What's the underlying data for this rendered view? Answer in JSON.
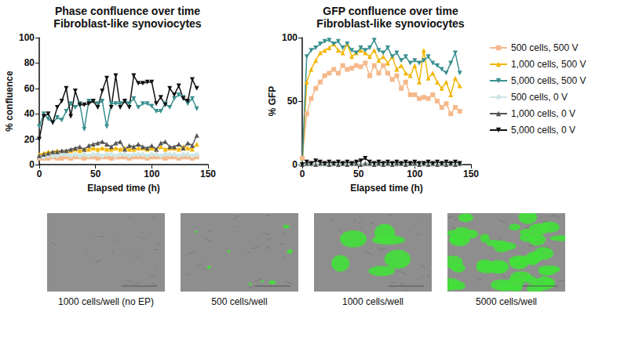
{
  "chart_data": [
    {
      "type": "line",
      "title": "Phase confluence over time",
      "subtitle": "Fibroblast-like synoviocytes",
      "x_label": "Elapsed time (h)",
      "y_label": "% confluence",
      "xlim": [
        0,
        150
      ],
      "xticks": [
        0,
        50,
        100,
        150
      ],
      "ylim": [
        0,
        100
      ],
      "yticks": [
        0,
        20,
        40,
        60,
        80,
        100
      ],
      "grid": false,
      "x": [
        0,
        4,
        8,
        12,
        16,
        20,
        24,
        28,
        32,
        36,
        40,
        44,
        48,
        52,
        56,
        60,
        64,
        68,
        72,
        76,
        80,
        84,
        88,
        92,
        96,
        100,
        104,
        108,
        112,
        116,
        120,
        124,
        128,
        132,
        136,
        140
      ],
      "series": [
        {
          "name": "500 cells, 500 V",
          "color": "#f5b98c",
          "marker": "square",
          "values": [
            5,
            5,
            5,
            6,
            5,
            5,
            6,
            5,
            6,
            6,
            5,
            6,
            6,
            5,
            6,
            6,
            5,
            6,
            6,
            6,
            5,
            6,
            6,
            6,
            5,
            6,
            6,
            6,
            5,
            6,
            6,
            5,
            6,
            6,
            5,
            6
          ]
        },
        {
          "name": "1,000 cells, 500 V",
          "color": "#f2b705",
          "marker": "triangle",
          "values": [
            8,
            9,
            10,
            10,
            11,
            10,
            11,
            11,
            12,
            11,
            12,
            12,
            13,
            12,
            13,
            12,
            12,
            13,
            12,
            13,
            12,
            12,
            13,
            13,
            12,
            13,
            12,
            14,
            12,
            13,
            13,
            12,
            14,
            13,
            12,
            16
          ]
        },
        {
          "name": "5,000 cells, 500 V",
          "color": "#3a9090",
          "marker": "triangle-down",
          "values": [
            30,
            40,
            36,
            33,
            37,
            35,
            42,
            48,
            45,
            48,
            28,
            50,
            50,
            48,
            50,
            30,
            48,
            48,
            48,
            50,
            48,
            52,
            45,
            48,
            48,
            46,
            42,
            42,
            48,
            45,
            52,
            55,
            53,
            48,
            52,
            44
          ]
        },
        {
          "name": "500 cells, 0 V",
          "color": "#cfe8e6",
          "marker": "circle",
          "values": [
            6,
            6,
            7,
            7,
            7,
            8,
            8,
            7,
            8,
            7,
            8,
            7,
            8,
            8,
            7,
            8,
            8,
            7,
            8,
            8,
            7,
            8,
            8,
            8,
            7,
            8,
            8,
            7,
            8,
            8,
            8,
            7,
            8,
            8,
            7,
            8
          ]
        },
        {
          "name": "1,000 cells, 0 V",
          "color": "#555555",
          "marker": "triangle",
          "values": [
            7,
            8,
            9,
            10,
            10,
            11,
            11,
            12,
            13,
            14,
            12,
            15,
            16,
            17,
            18,
            16,
            14,
            17,
            18,
            12,
            15,
            14,
            16,
            14,
            13,
            15,
            12,
            17,
            18,
            14,
            14,
            16,
            13,
            17,
            15,
            23
          ]
        },
        {
          "name": "5,000 cells, 0 V",
          "color": "#111111",
          "marker": "triangle-down",
          "values": [
            20,
            38,
            40,
            33,
            45,
            50,
            60,
            38,
            58,
            47,
            47,
            48,
            50,
            45,
            58,
            68,
            45,
            70,
            45,
            50,
            45,
            70,
            64,
            64,
            65,
            65,
            48,
            53,
            47,
            60,
            55,
            62,
            52,
            50,
            67,
            60
          ]
        }
      ]
    },
    {
      "type": "line",
      "title": "GFP confluence over time",
      "subtitle": "Fibroblast-like synoviocytes",
      "x_label": "Elapsed time (h)",
      "y_label": "% GFP",
      "xlim": [
        0,
        150
      ],
      "xticks": [
        0,
        50,
        100,
        150
      ],
      "ylim": [
        0,
        100
      ],
      "yticks": [
        0,
        50,
        100
      ],
      "grid": false,
      "legend": "right",
      "x": [
        0,
        4,
        8,
        12,
        16,
        20,
        24,
        28,
        32,
        36,
        40,
        44,
        48,
        52,
        56,
        60,
        64,
        68,
        72,
        76,
        80,
        84,
        88,
        92,
        96,
        100,
        104,
        108,
        112,
        116,
        120,
        124,
        128,
        132,
        136,
        140
      ],
      "series": [
        {
          "name": "500 cells, 500 V",
          "color": "#f5b98c",
          "marker": "square",
          "values": [
            5,
            40,
            52,
            60,
            65,
            70,
            72,
            75,
            72,
            78,
            75,
            76,
            78,
            77,
            80,
            70,
            78,
            72,
            78,
            72,
            67,
            70,
            60,
            65,
            55,
            55,
            52,
            53,
            52,
            55,
            50,
            45,
            48,
            40,
            45,
            42
          ]
        },
        {
          "name": "1,000 cells, 500 V",
          "color": "#f2b705",
          "marker": "triangle",
          "values": [
            0,
            65,
            75,
            82,
            88,
            90,
            92,
            95,
            90,
            88,
            95,
            85,
            88,
            90,
            88,
            85,
            90,
            82,
            85,
            80,
            85,
            75,
            78,
            72,
            70,
            78,
            65,
            90,
            68,
            72,
            65,
            60,
            65,
            55,
            68,
            62
          ]
        },
        {
          "name": "5,000 cells, 500 V",
          "color": "#3a9090",
          "marker": "triangle-down",
          "values": [
            0,
            85,
            90,
            92,
            95,
            97,
            98,
            95,
            97,
            92,
            95,
            90,
            88,
            92,
            90,
            92,
            98,
            90,
            88,
            92,
            85,
            88,
            82,
            85,
            80,
            82,
            80,
            82,
            85,
            80,
            78,
            75,
            72,
            80,
            88,
            72
          ]
        },
        {
          "name": "500 cells, 0 V",
          "color": "#cfe8e6",
          "marker": "circle",
          "values": [
            0,
            0,
            0,
            0,
            0,
            0,
            0,
            0,
            0,
            0,
            0,
            0,
            0,
            0,
            0,
            0,
            0,
            0,
            0,
            0,
            0,
            0,
            0,
            0,
            0,
            0,
            0,
            0,
            0,
            0,
            0,
            0,
            0,
            0,
            0,
            0
          ]
        },
        {
          "name": "1,000 cells, 0 V",
          "color": "#555555",
          "marker": "triangle",
          "values": [
            0,
            1,
            1,
            0,
            1,
            1,
            0,
            1,
            0,
            1,
            0,
            1,
            1,
            0,
            1,
            1,
            0,
            1,
            0,
            1,
            0,
            1,
            1,
            0,
            1,
            1,
            0,
            1,
            0,
            1,
            0,
            1,
            0,
            1,
            0,
            1
          ]
        },
        {
          "name": "5,000 cells, 0 V",
          "color": "#111111",
          "marker": "triangle-down",
          "values": [
            0,
            2,
            1,
            3,
            2,
            1,
            2,
            1,
            2,
            1,
            2,
            1,
            2,
            3,
            5,
            2,
            1,
            2,
            1,
            2,
            1,
            2,
            1,
            2,
            1,
            2,
            1,
            1,
            2,
            1,
            2,
            1,
            2,
            1,
            2,
            1
          ]
        }
      ]
    }
  ],
  "images": [
    {
      "caption": "1000 cells/well (no EP)"
    },
    {
      "caption": "500 cells/well"
    },
    {
      "caption": "1000 cells/well"
    },
    {
      "caption": "5000 cells/well"
    }
  ]
}
